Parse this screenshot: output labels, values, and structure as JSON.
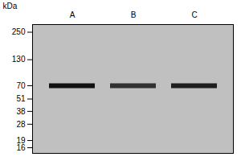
{
  "chart_data": {
    "type": "gel",
    "ylabel": "kDa",
    "categories": [
      "A",
      "B",
      "C"
    ],
    "values": [
      70,
      70,
      70
    ],
    "intensities": [
      1.0,
      0.82,
      0.92
    ],
    "color": "#111111",
    "ylim": [
      14,
      300
    ],
    "yticks": [
      250,
      130,
      70,
      51,
      38,
      28,
      19,
      16
    ],
    "log": "y"
  }
}
